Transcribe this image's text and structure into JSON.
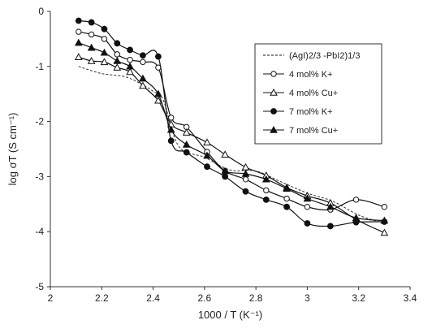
{
  "chart_data": {
    "type": "line",
    "xlabel": "1000 / T (K⁻¹)",
    "ylabel": "log σT (S cm⁻¹)",
    "xlim": [
      2,
      3.4
    ],
    "ylim": [
      -5,
      0
    ],
    "x_ticks": [
      "2",
      "2.2",
      "2.4",
      "2.6",
      "2.8",
      "3",
      "3.2",
      "3.4"
    ],
    "y_ticks": [
      "0",
      "-1",
      "-2",
      "-3",
      "-4",
      "-5"
    ],
    "grid": false,
    "legend_position": "top-right",
    "series": [
      {
        "name": "(AgI)2/3 -PbI2)1/3",
        "marker": "none",
        "dash": true,
        "points": [
          [
            2.11,
            -1.0
          ],
          [
            2.2,
            -1.13
          ],
          [
            2.3,
            -1.2
          ],
          [
            2.4,
            -1.45
          ],
          [
            2.44,
            -1.62
          ],
          [
            2.5,
            -2.45
          ],
          [
            2.6,
            -2.65
          ],
          [
            2.7,
            -2.88
          ],
          [
            2.8,
            -2.9
          ],
          [
            2.9,
            -3.1
          ],
          [
            3.0,
            -3.3
          ],
          [
            3.1,
            -3.45
          ],
          [
            3.2,
            -3.7
          ],
          [
            3.3,
            -3.85
          ]
        ]
      },
      {
        "name": "4 mol% K+",
        "marker": "circle-open",
        "dash": false,
        "points": [
          [
            2.11,
            -0.37
          ],
          [
            2.16,
            -0.42
          ],
          [
            2.21,
            -0.5
          ],
          [
            2.26,
            -0.78
          ],
          [
            2.31,
            -0.88
          ],
          [
            2.36,
            -0.92
          ],
          [
            2.42,
            -1.02
          ],
          [
            2.47,
            -1.93
          ],
          [
            2.53,
            -2.1
          ],
          [
            2.61,
            -2.55
          ],
          [
            2.68,
            -2.9
          ],
          [
            2.76,
            -3.05
          ],
          [
            2.84,
            -3.25
          ],
          [
            2.92,
            -3.4
          ],
          [
            3.0,
            -3.55
          ],
          [
            3.09,
            -3.6
          ],
          [
            3.19,
            -3.42
          ],
          [
            3.3,
            -3.55
          ]
        ]
      },
      {
        "name": "4 mol% Cu+",
        "marker": "triangle-open",
        "dash": false,
        "points": [
          [
            2.11,
            -0.83
          ],
          [
            2.16,
            -0.9
          ],
          [
            2.21,
            -0.92
          ],
          [
            2.26,
            -1.02
          ],
          [
            2.31,
            -1.1
          ],
          [
            2.36,
            -1.35
          ],
          [
            2.42,
            -1.62
          ],
          [
            2.47,
            -2.05
          ],
          [
            2.53,
            -2.2
          ],
          [
            2.61,
            -2.38
          ],
          [
            2.68,
            -2.6
          ],
          [
            2.76,
            -2.83
          ],
          [
            2.84,
            -2.98
          ],
          [
            2.92,
            -3.2
          ],
          [
            3.0,
            -3.35
          ],
          [
            3.09,
            -3.48
          ],
          [
            3.19,
            -3.78
          ],
          [
            3.3,
            -4.02
          ]
        ]
      },
      {
        "name": "7 mol% K+",
        "marker": "circle-filled",
        "dash": false,
        "points": [
          [
            2.11,
            -0.17
          ],
          [
            2.16,
            -0.2
          ],
          [
            2.21,
            -0.32
          ],
          [
            2.26,
            -0.58
          ],
          [
            2.31,
            -0.7
          ],
          [
            2.36,
            -0.8
          ],
          [
            2.42,
            -0.82
          ],
          [
            2.47,
            -2.35
          ],
          [
            2.53,
            -2.56
          ],
          [
            2.61,
            -2.82
          ],
          [
            2.68,
            -3.0
          ],
          [
            2.76,
            -3.27
          ],
          [
            2.84,
            -3.42
          ],
          [
            2.92,
            -3.55
          ],
          [
            3.0,
            -3.85
          ],
          [
            3.09,
            -3.9
          ],
          [
            3.19,
            -3.83
          ],
          [
            3.3,
            -3.82
          ]
        ]
      },
      {
        "name": "7 mol% Cu+",
        "marker": "triangle-filled",
        "dash": false,
        "points": [
          [
            2.11,
            -0.57
          ],
          [
            2.16,
            -0.66
          ],
          [
            2.21,
            -0.75
          ],
          [
            2.26,
            -0.9
          ],
          [
            2.31,
            -1.0
          ],
          [
            2.36,
            -1.22
          ],
          [
            2.42,
            -1.5
          ],
          [
            2.47,
            -2.15
          ],
          [
            2.53,
            -2.42
          ],
          [
            2.61,
            -2.62
          ],
          [
            2.68,
            -2.9
          ],
          [
            2.76,
            -2.95
          ],
          [
            2.84,
            -3.05
          ],
          [
            2.92,
            -3.22
          ],
          [
            3.0,
            -3.4
          ],
          [
            3.09,
            -3.55
          ],
          [
            3.19,
            -3.75
          ],
          [
            3.3,
            -3.8
          ]
        ]
      }
    ]
  }
}
